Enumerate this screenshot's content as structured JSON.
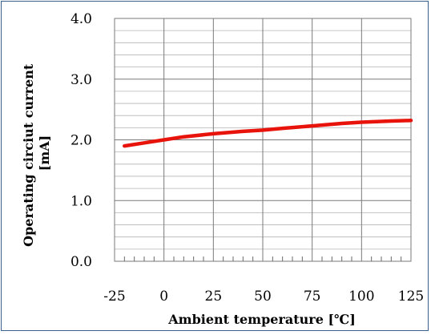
{
  "chart_data": {
    "type": "line",
    "title": "",
    "xlabel": "Ambient temperature [℃]",
    "ylabel_lines": [
      "Operating circiut current",
      "[mA]"
    ],
    "x_tick_labels": [
      "-25",
      "0",
      "25",
      "50",
      "75",
      "100",
      "125"
    ],
    "x_ticks": [
      -25,
      0,
      25,
      50,
      75,
      100,
      125
    ],
    "y_tick_labels": [
      "0.0",
      "1.0",
      "2.0",
      "3.0",
      "4.0"
    ],
    "y_ticks": [
      0,
      1,
      2,
      3,
      4
    ],
    "xlim": [
      -25,
      125
    ],
    "ylim": [
      0,
      4
    ],
    "x_minor_step": 5,
    "y_minor_step": 0.2,
    "grid": true,
    "legend": "none",
    "series": [
      {
        "color": "#e8140c",
        "x": [
          -20,
          -10,
          0,
          10,
          25,
          40,
          50,
          60,
          75,
          90,
          100,
          115,
          125
        ],
        "y": [
          1.9,
          1.95,
          2.0,
          2.05,
          2.1,
          2.14,
          2.16,
          2.19,
          2.23,
          2.27,
          2.29,
          2.31,
          2.32
        ]
      }
    ]
  }
}
